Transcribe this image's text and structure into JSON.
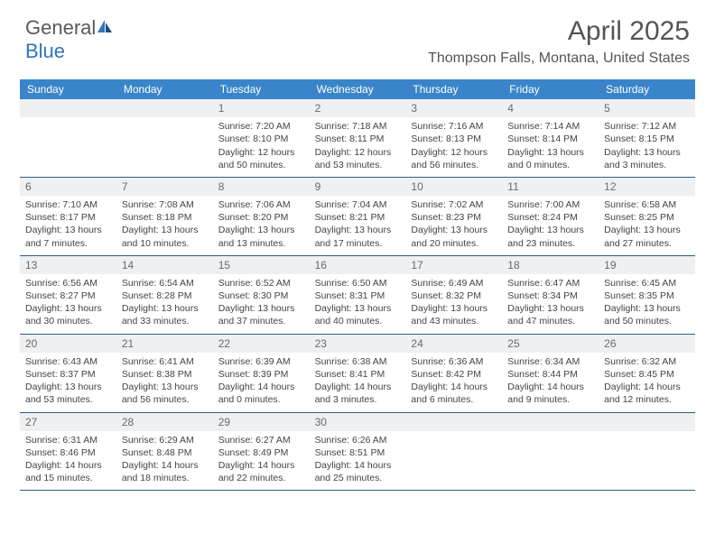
{
  "brand": {
    "name_part1": "General",
    "name_part2": "Blue"
  },
  "title": {
    "month": "April 2025",
    "location": "Thompson Falls, Montana, United States"
  },
  "colors": {
    "header_bg": "#3a85c9",
    "header_text": "#ffffff",
    "daynum_bg": "#eef0f2",
    "daynum_text": "#6a6a6a",
    "week_border": "#2f5d88",
    "body_text": "#444444",
    "logo_gray": "#5a5a5a",
    "logo_blue": "#2f76bb"
  },
  "days_of_week": [
    "Sunday",
    "Monday",
    "Tuesday",
    "Wednesday",
    "Thursday",
    "Friday",
    "Saturday"
  ],
  "weeks": [
    [
      null,
      null,
      {
        "n": "1",
        "sunrise": "7:20 AM",
        "sunset": "8:10 PM",
        "daylight": "12 hours and 50 minutes."
      },
      {
        "n": "2",
        "sunrise": "7:18 AM",
        "sunset": "8:11 PM",
        "daylight": "12 hours and 53 minutes."
      },
      {
        "n": "3",
        "sunrise": "7:16 AM",
        "sunset": "8:13 PM",
        "daylight": "12 hours and 56 minutes."
      },
      {
        "n": "4",
        "sunrise": "7:14 AM",
        "sunset": "8:14 PM",
        "daylight": "13 hours and 0 minutes."
      },
      {
        "n": "5",
        "sunrise": "7:12 AM",
        "sunset": "8:15 PM",
        "daylight": "13 hours and 3 minutes."
      }
    ],
    [
      {
        "n": "6",
        "sunrise": "7:10 AM",
        "sunset": "8:17 PM",
        "daylight": "13 hours and 7 minutes."
      },
      {
        "n": "7",
        "sunrise": "7:08 AM",
        "sunset": "8:18 PM",
        "daylight": "13 hours and 10 minutes."
      },
      {
        "n": "8",
        "sunrise": "7:06 AM",
        "sunset": "8:20 PM",
        "daylight": "13 hours and 13 minutes."
      },
      {
        "n": "9",
        "sunrise": "7:04 AM",
        "sunset": "8:21 PM",
        "daylight": "13 hours and 17 minutes."
      },
      {
        "n": "10",
        "sunrise": "7:02 AM",
        "sunset": "8:23 PM",
        "daylight": "13 hours and 20 minutes."
      },
      {
        "n": "11",
        "sunrise": "7:00 AM",
        "sunset": "8:24 PM",
        "daylight": "13 hours and 23 minutes."
      },
      {
        "n": "12",
        "sunrise": "6:58 AM",
        "sunset": "8:25 PM",
        "daylight": "13 hours and 27 minutes."
      }
    ],
    [
      {
        "n": "13",
        "sunrise": "6:56 AM",
        "sunset": "8:27 PM",
        "daylight": "13 hours and 30 minutes."
      },
      {
        "n": "14",
        "sunrise": "6:54 AM",
        "sunset": "8:28 PM",
        "daylight": "13 hours and 33 minutes."
      },
      {
        "n": "15",
        "sunrise": "6:52 AM",
        "sunset": "8:30 PM",
        "daylight": "13 hours and 37 minutes."
      },
      {
        "n": "16",
        "sunrise": "6:50 AM",
        "sunset": "8:31 PM",
        "daylight": "13 hours and 40 minutes."
      },
      {
        "n": "17",
        "sunrise": "6:49 AM",
        "sunset": "8:32 PM",
        "daylight": "13 hours and 43 minutes."
      },
      {
        "n": "18",
        "sunrise": "6:47 AM",
        "sunset": "8:34 PM",
        "daylight": "13 hours and 47 minutes."
      },
      {
        "n": "19",
        "sunrise": "6:45 AM",
        "sunset": "8:35 PM",
        "daylight": "13 hours and 50 minutes."
      }
    ],
    [
      {
        "n": "20",
        "sunrise": "6:43 AM",
        "sunset": "8:37 PM",
        "daylight": "13 hours and 53 minutes."
      },
      {
        "n": "21",
        "sunrise": "6:41 AM",
        "sunset": "8:38 PM",
        "daylight": "13 hours and 56 minutes."
      },
      {
        "n": "22",
        "sunrise": "6:39 AM",
        "sunset": "8:39 PM",
        "daylight": "14 hours and 0 minutes."
      },
      {
        "n": "23",
        "sunrise": "6:38 AM",
        "sunset": "8:41 PM",
        "daylight": "14 hours and 3 minutes."
      },
      {
        "n": "24",
        "sunrise": "6:36 AM",
        "sunset": "8:42 PM",
        "daylight": "14 hours and 6 minutes."
      },
      {
        "n": "25",
        "sunrise": "6:34 AM",
        "sunset": "8:44 PM",
        "daylight": "14 hours and 9 minutes."
      },
      {
        "n": "26",
        "sunrise": "6:32 AM",
        "sunset": "8:45 PM",
        "daylight": "14 hours and 12 minutes."
      }
    ],
    [
      {
        "n": "27",
        "sunrise": "6:31 AM",
        "sunset": "8:46 PM",
        "daylight": "14 hours and 15 minutes."
      },
      {
        "n": "28",
        "sunrise": "6:29 AM",
        "sunset": "8:48 PM",
        "daylight": "14 hours and 18 minutes."
      },
      {
        "n": "29",
        "sunrise": "6:27 AM",
        "sunset": "8:49 PM",
        "daylight": "14 hours and 22 minutes."
      },
      {
        "n": "30",
        "sunrise": "6:26 AM",
        "sunset": "8:51 PM",
        "daylight": "14 hours and 25 minutes."
      },
      null,
      null,
      null
    ]
  ],
  "labels": {
    "sunrise": "Sunrise:",
    "sunset": "Sunset:",
    "daylight": "Daylight:"
  }
}
